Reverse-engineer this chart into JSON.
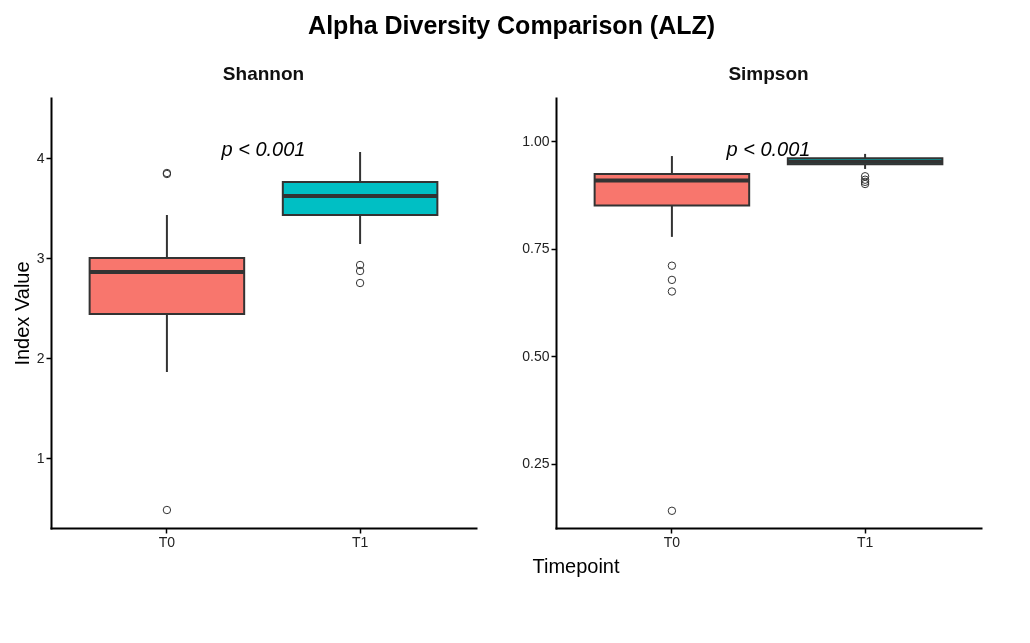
{
  "chart_data": [
    {
      "type": "other",
      "title": "Alpha Diversity Comparison (ALZ)",
      "xlabel": "Timepoint"
    },
    {
      "type": "box",
      "title": "Shannon",
      "ylabel": "Index Value",
      "categories": [
        "T0",
        "T1"
      ],
      "colors": [
        "#f8766d",
        "#00bfc4"
      ],
      "boxes": [
        {
          "low": 1.86,
          "q1": 2.44,
          "median": 2.86,
          "q3": 3.0,
          "high": 3.43,
          "outliers": [
            3.84,
            3.85,
            0.48
          ]
        },
        {
          "low": 3.14,
          "q1": 3.43,
          "median": 3.62,
          "q3": 3.76,
          "high": 4.06,
          "outliers": [
            2.93,
            2.87,
            2.75
          ]
        }
      ],
      "ylim": [
        0.3,
        4.6
      ],
      "yticks": [
        1,
        2,
        3,
        4
      ],
      "annotations": [
        "p < 0.001"
      ],
      "grid": false
    },
    {
      "type": "box",
      "title": "Simpson",
      "categories": [
        "T0",
        "T1"
      ],
      "colors": [
        "#f8766d",
        "#00bfc4"
      ],
      "boxes": [
        {
          "low": 0.777,
          "q1": 0.85,
          "median": 0.908,
          "q3": 0.923,
          "high": 0.965,
          "outliers": [
            0.71,
            0.677,
            0.65,
            0.14
          ]
        },
        {
          "low": 0.935,
          "q1": 0.946,
          "median": 0.952,
          "q3": 0.96,
          "high": 0.97,
          "outliers": [
            0.918,
            0.91,
            0.905,
            0.9
          ]
        }
      ],
      "ylim": [
        0.1,
        1.1
      ],
      "yticks": [
        {
          "value": 0.25,
          "label": "0.25"
        },
        {
          "value": 0.5,
          "label": "0.50"
        },
        0.75,
        {
          "value": 1,
          "label": "1.00"
        }
      ],
      "annotations": [
        "p < 0.001"
      ],
      "grid": false
    }
  ]
}
